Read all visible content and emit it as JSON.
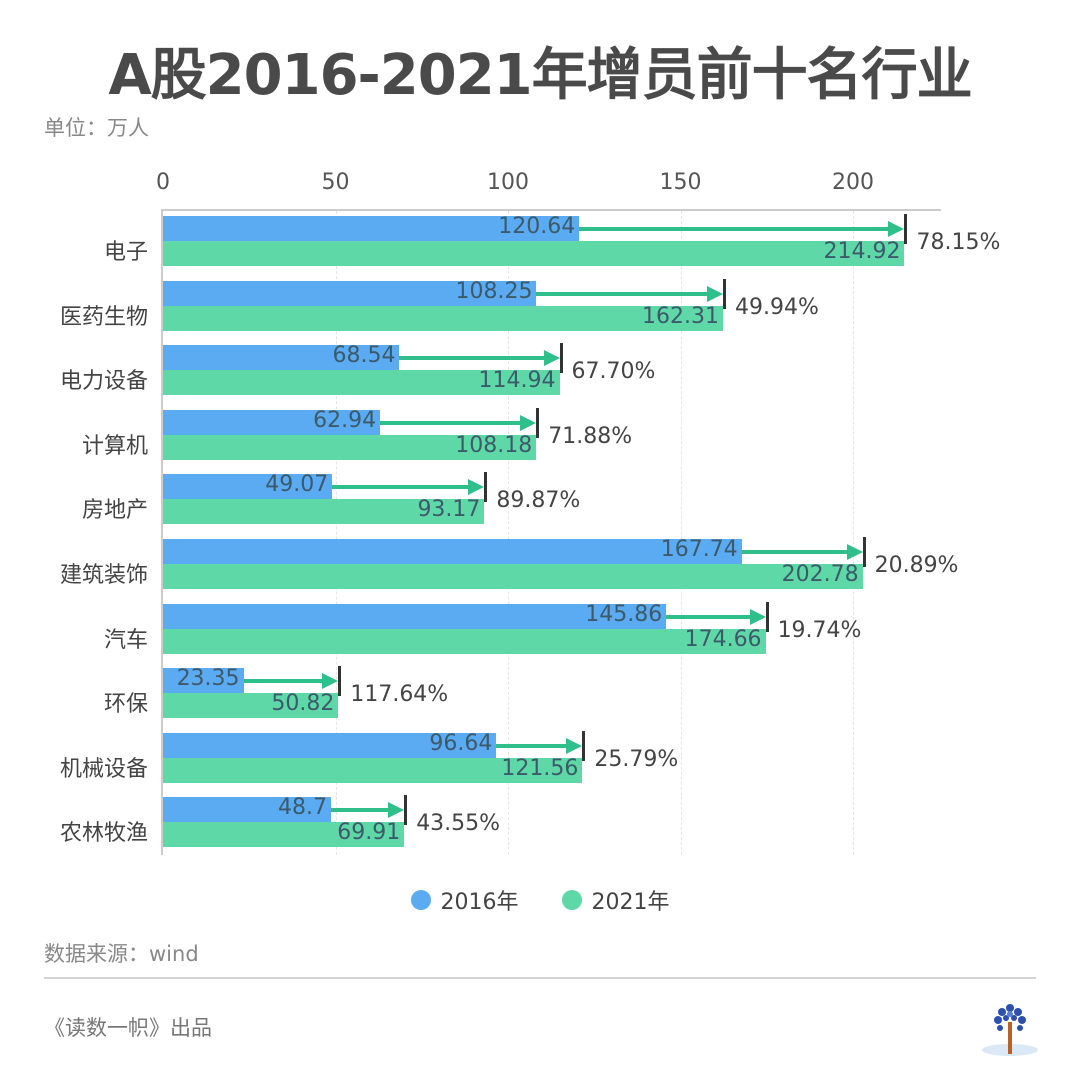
{
  "header": {
    "title": "A股2016-2021年增员前十名行业",
    "unit": "单位：万人"
  },
  "colors": {
    "series_2016": "#5aabf2",
    "series_2021": "#5fd8a8",
    "arrow": "#2ebf8a",
    "text": "#444444"
  },
  "chart_data": {
    "type": "bar",
    "orientation": "horizontal",
    "title": "A股2016-2021年增员前十名行业",
    "subtitle": "单位：万人",
    "xlabel": "",
    "ylabel": "",
    "xlim": [
      0,
      225
    ],
    "x_ticks": [
      0,
      50,
      100,
      150,
      200
    ],
    "x_axis_position": "top",
    "grid": true,
    "legend_position": "bottom",
    "categories": [
      "电子",
      "医药生物",
      "电力设备",
      "计算机",
      "房地产",
      "建筑装饰",
      "汽车",
      "环保",
      "机械设备",
      "农林牧渔"
    ],
    "series": [
      {
        "name": "2016年",
        "color": "#5aabf2",
        "values": [
          120.64,
          108.25,
          68.54,
          62.94,
          49.07,
          167.74,
          145.86,
          23.35,
          96.64,
          48.7
        ]
      },
      {
        "name": "2021年",
        "color": "#5fd8a8",
        "values": [
          214.92,
          162.31,
          114.94,
          108.18,
          93.17,
          202.78,
          174.66,
          50.82,
          121.56,
          69.91
        ]
      }
    ],
    "annotations": {
      "growth_pct": [
        "78.15%",
        "49.94%",
        "67.70%",
        "71.88%",
        "89.87%",
        "20.89%",
        "19.74%",
        "117.64%",
        "25.79%",
        "43.55%"
      ]
    }
  },
  "labels": {
    "values_2016": [
      "120.64",
      "108.25",
      "68.54",
      "62.94",
      "49.07",
      "167.74",
      "145.86",
      "23.35",
      "96.64",
      "48.7"
    ],
    "values_2021": [
      "214.92",
      "162.31",
      "114.94",
      "108.18",
      "93.17",
      "202.78",
      "174.66",
      "50.82",
      "121.56",
      "69.91"
    ],
    "ticks": [
      "0",
      "50",
      "100",
      "150",
      "200"
    ]
  },
  "legend": {
    "items": [
      {
        "label": "2016年",
        "color": "#5aabf2"
      },
      {
        "label": "2021年",
        "color": "#5fd8a8"
      }
    ]
  },
  "footer": {
    "source": "数据来源：wind",
    "credit": "《读数一帜》出品",
    "logo": "tree-logo"
  }
}
